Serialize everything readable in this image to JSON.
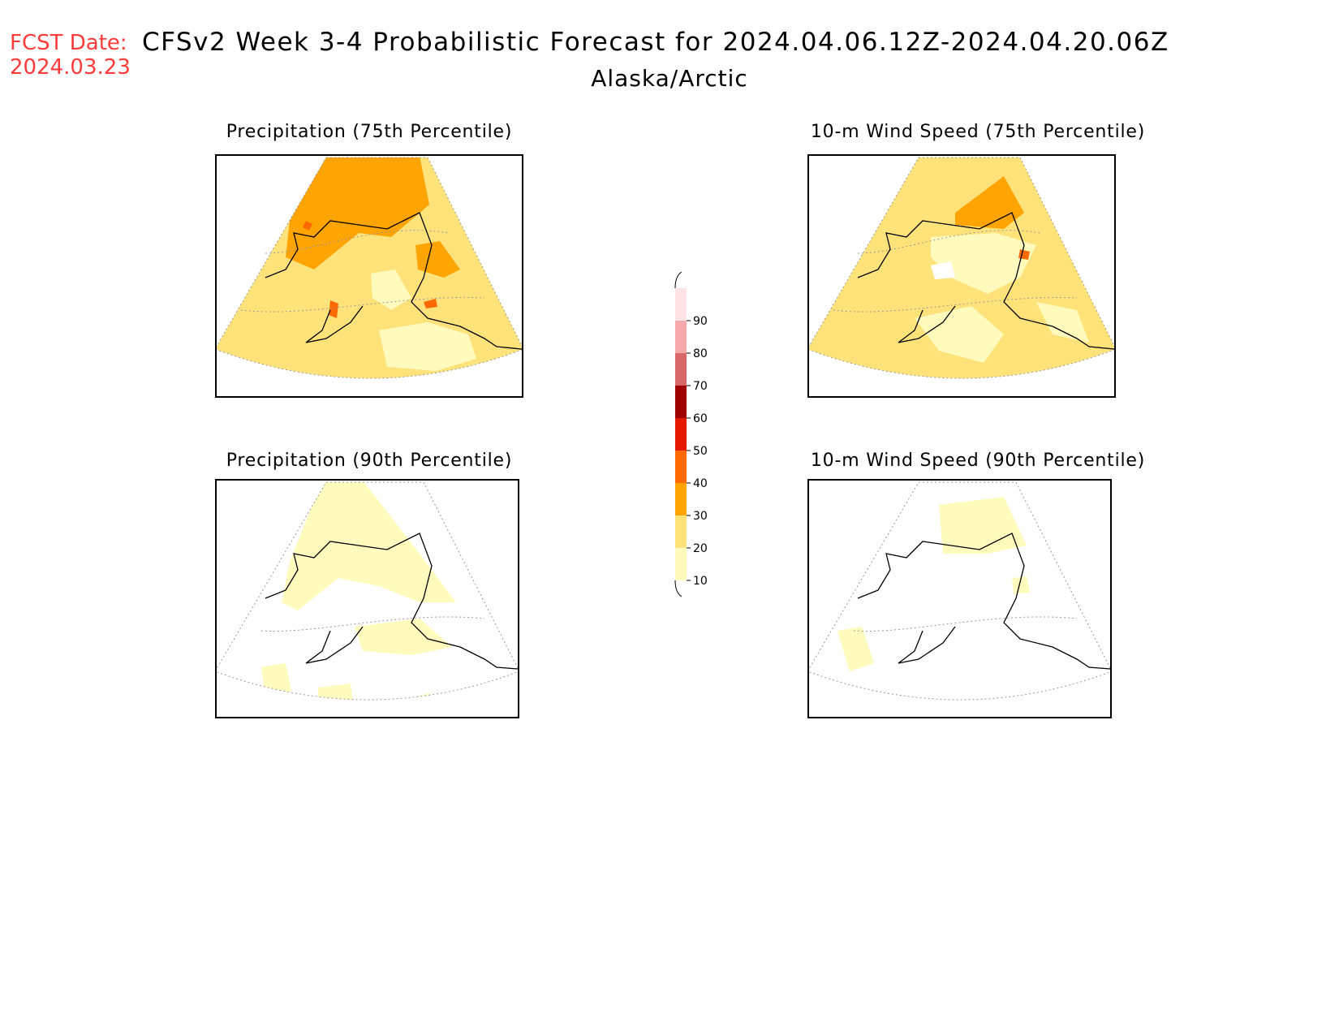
{
  "header": {
    "fcst_label": "FCST Date:",
    "fcst_date": "2024.03.23",
    "title": "CFSv2 Week 3-4 Probabilistic Forecast for 2024.04.06.12Z-2024.04.20.06Z",
    "region": "Alaska/Arctic"
  },
  "panels": [
    {
      "id": "precip-75",
      "title": "Precipitation (75th Percentile)"
    },
    {
      "id": "wind-75",
      "title": "10-m Wind Speed (75th Percentile)"
    },
    {
      "id": "precip-90",
      "title": "Precipitation (90th Percentile)"
    },
    {
      "id": "wind-90",
      "title": "10-m Wind Speed (90th Percentile)"
    }
  ],
  "colorbar": {
    "levels": [
      10,
      20,
      30,
      40,
      50,
      60,
      70,
      80,
      90
    ],
    "colors": [
      "#fffbbd",
      "#ffe27a",
      "#ffa400",
      "#ff6a00",
      "#e41a00",
      "#a00000",
      "#d9686a",
      "#f4aaaa",
      "#fde3e3"
    ]
  }
}
